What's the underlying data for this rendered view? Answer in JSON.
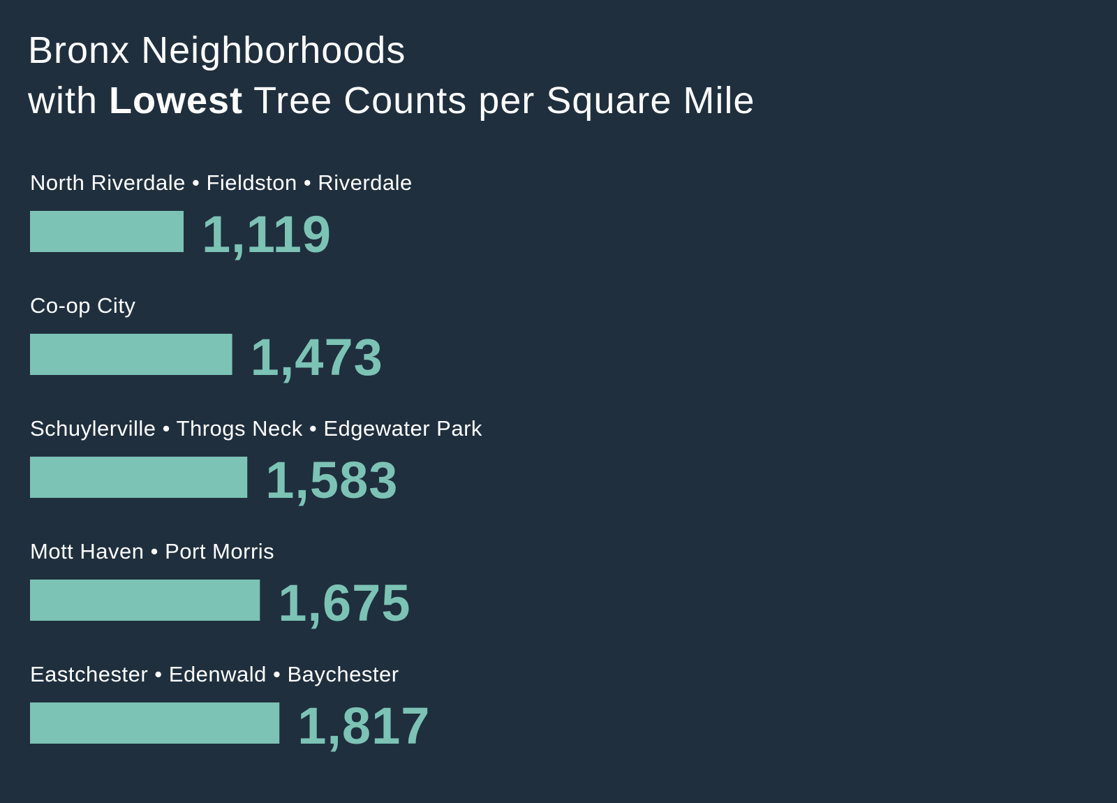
{
  "header": {
    "title_line1": "Bronx Neighborhoods",
    "title_line2_prefix": "with",
    "title_line2_bold": "Lowest",
    "title_line2_suffix": "Tree Counts per Square Mile"
  },
  "colors": {
    "background": "#1f2f3e",
    "bar": "#7cc3b5",
    "value_text": "#7cc3b5",
    "label_text": "#ffffff"
  },
  "chart_data": {
    "type": "bar",
    "orientation": "horizontal",
    "title": "Bronx Neighborhoods with Lowest Tree Counts per Square Mile",
    "categories": [
      "North Riverdale • Fieldston • Riverdale",
      "Co-op City",
      "Schuylerville • Throgs Neck • Edgewater Park",
      "Mott Haven • Port Morris",
      "Eastchester • Edenwald • Baychester"
    ],
    "values": [
      1119,
      1473,
      1583,
      1675,
      1817
    ],
    "value_labels": [
      "1,119",
      "1,473",
      "1,583",
      "1,675",
      "1,817"
    ],
    "grid": false,
    "legend": "none"
  }
}
